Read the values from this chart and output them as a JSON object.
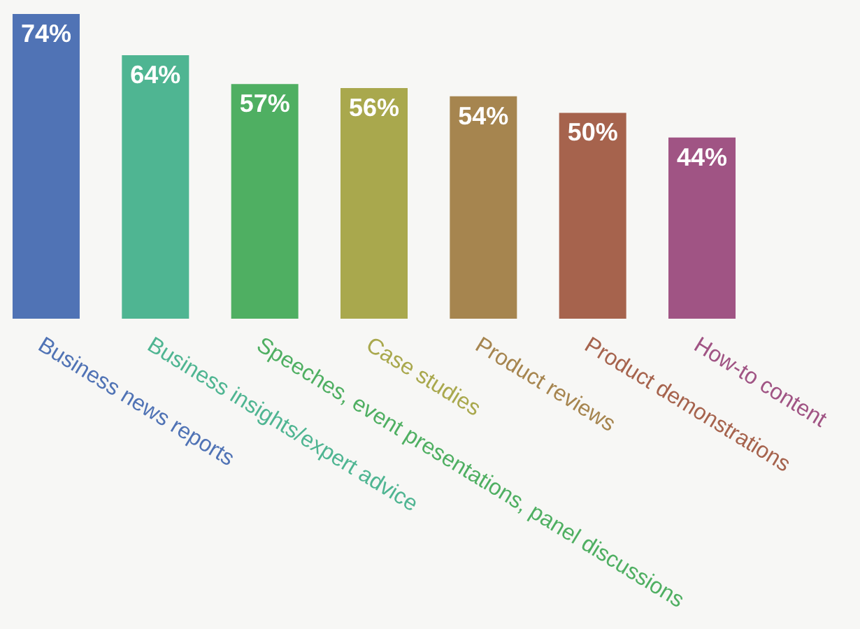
{
  "chart_data": {
    "type": "bar",
    "categories": [
      "Business news reports",
      "Business insights/expert advice",
      "Speeches, event presentations, panel discussions",
      "Case studies",
      "Product reviews",
      "Product demonstrations",
      "How-to content"
    ],
    "values": [
      74,
      64,
      57,
      56,
      54,
      50,
      44
    ],
    "value_labels": [
      "74%",
      "64%",
      "57%",
      "56%",
      "54%",
      "50%",
      "44%"
    ],
    "colors": [
      "#5073b5",
      "#4fb592",
      "#4faf62",
      "#a9a84d",
      "#a6854f",
      "#a6634d",
      "#a05484"
    ]
  }
}
